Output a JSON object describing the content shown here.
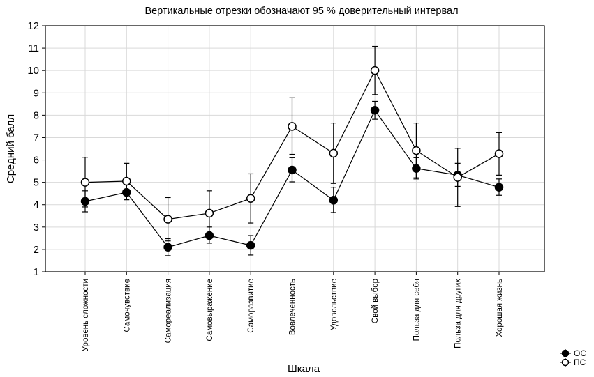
{
  "chart_data": {
    "type": "line",
    "title": "Вертикальные отрезки обозначают 95 % доверительный интервал",
    "xlabel": "Шкала",
    "ylabel": "Средний балл",
    "ylim": [
      1,
      12
    ],
    "yticks": [
      1,
      2,
      3,
      4,
      5,
      6,
      7,
      8,
      9,
      10,
      11,
      12
    ],
    "grid": true,
    "legend_position": "bottom-right",
    "categories": [
      "Уровень сложности",
      "Самочувствие",
      "Самореализация",
      "Самовыражение",
      "Саморазвитие",
      "Вовлеченность",
      "Удовольствие",
      "Свой выбор",
      "Польза для себя",
      "Польза для других",
      "Хорошая жизнь"
    ],
    "series": [
      {
        "name": "ОС",
        "marker": "filled-circle",
        "color": "#000000",
        "values": [
          4.15,
          4.55,
          2.1,
          2.62,
          2.18,
          5.55,
          4.2,
          8.22,
          5.62,
          5.32,
          4.78
        ],
        "ci_low": [
          3.68,
          4.22,
          1.72,
          2.28,
          1.75,
          5.02,
          3.65,
          7.82,
          5.15,
          4.82,
          4.42
        ],
        "ci_high": [
          4.62,
          4.9,
          2.48,
          3.0,
          2.62,
          6.1,
          4.78,
          8.62,
          6.1,
          5.85,
          5.15
        ]
      },
      {
        "name": "ПС",
        "marker": "open-circle",
        "color": "#000000",
        "values": [
          5.0,
          5.05,
          3.35,
          3.62,
          4.28,
          7.5,
          6.3,
          10.0,
          6.42,
          5.22,
          6.28
        ],
        "ci_low": [
          3.9,
          4.25,
          2.38,
          2.65,
          3.18,
          6.25,
          4.95,
          8.92,
          5.2,
          3.92,
          5.32
        ],
        "ci_high": [
          6.12,
          5.85,
          4.32,
          4.62,
          5.38,
          8.78,
          7.65,
          11.08,
          7.65,
          6.52,
          7.22
        ]
      }
    ]
  }
}
